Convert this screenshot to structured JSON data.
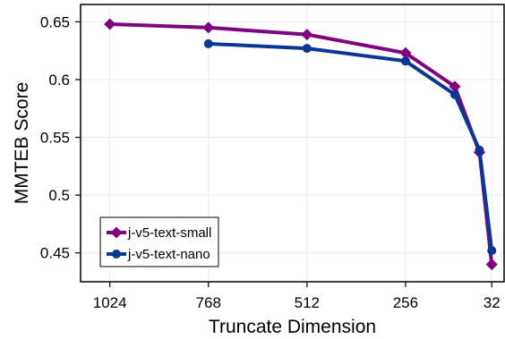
{
  "chart_data": {
    "type": "line",
    "title": "",
    "xlabel": "Truncate Dimension",
    "ylabel": "MMTEB Score",
    "x_axis": {
      "reversed": true,
      "ticks": [
        1024,
        768,
        512,
        256,
        32
      ],
      "xlim": [
        1100,
        0
      ]
    },
    "ylim": [
      0.425,
      0.665
    ],
    "yticks": [
      0.45,
      0.5,
      0.55,
      0.6,
      0.65
    ],
    "ytick_labels": [
      "0.45",
      "0.5",
      "0.55",
      "0.6",
      "0.65"
    ],
    "grid": true,
    "legend_position": "bottom-left",
    "series": [
      {
        "name": "j-v5-text-small",
        "color": "#800080",
        "marker": "diamond",
        "x": [
          1024,
          768,
          512,
          256,
          128,
          64,
          32
        ],
        "y": [
          0.648,
          0.645,
          0.639,
          0.623,
          0.594,
          0.537,
          0.44
        ]
      },
      {
        "name": "j-v5-text-nano",
        "color": "#0b3794",
        "marker": "circle",
        "x": [
          768,
          512,
          256,
          128,
          64,
          32
        ],
        "y": [
          0.631,
          0.627,
          0.616,
          0.587,
          0.539,
          0.452
        ]
      }
    ]
  }
}
